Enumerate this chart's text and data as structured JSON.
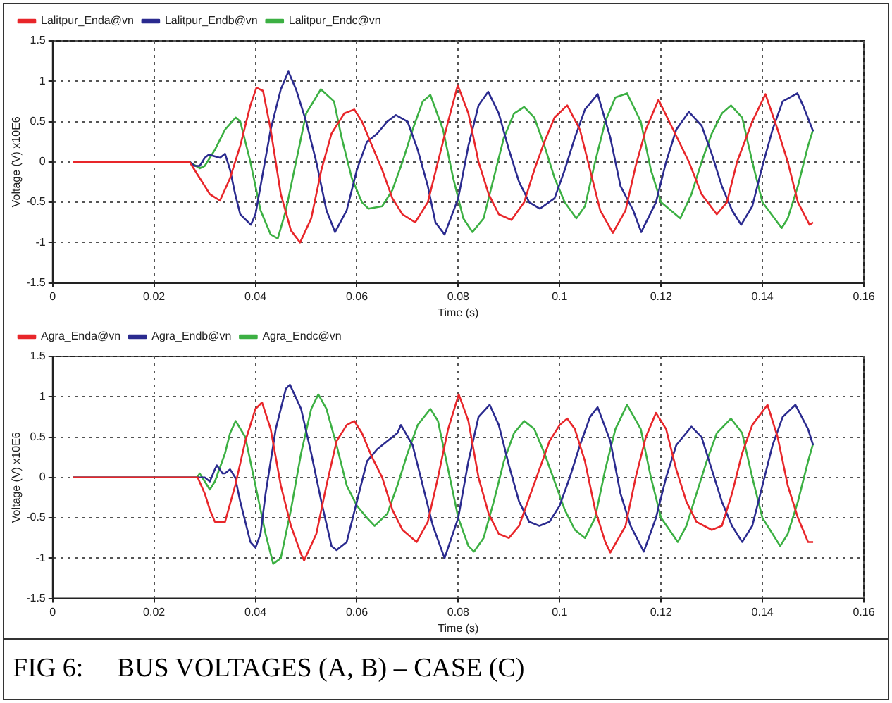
{
  "chart_data": [
    {
      "type": "line",
      "xlabel": "Time (s)",
      "ylabel": "Voltage (V) x10E6",
      "xlim": [
        0,
        0.16
      ],
      "xticks": [
        0,
        0.02,
        0.04,
        0.06,
        0.08,
        0.1,
        0.12,
        0.14,
        0.16
      ],
      "ylim": [
        -1.5,
        1.5
      ],
      "yticks": [
        -1.5,
        -1,
        -0.5,
        0,
        0.5,
        1,
        1.5
      ],
      "grid": true,
      "legend": "top left",
      "marker": "none",
      "line_style": "solid",
      "series": [
        {
          "name": "Lalitpur_Enda@vn",
          "color": "#e8262a",
          "x": [
            0.004,
            0.027,
            0.029,
            0.031,
            0.033,
            0.035,
            0.037,
            0.039,
            0.0402,
            0.0415,
            0.043,
            0.045,
            0.047,
            0.0488,
            0.051,
            0.053,
            0.055,
            0.0575,
            0.0595,
            0.061,
            0.063,
            0.065,
            0.067,
            0.069,
            0.0715,
            0.074,
            0.076,
            0.078,
            0.0799,
            0.082,
            0.084,
            0.086,
            0.088,
            0.0905,
            0.093,
            0.095,
            0.097,
            0.099,
            0.1015,
            0.104,
            0.106,
            0.108,
            0.1105,
            0.113,
            0.115,
            0.117,
            0.1195,
            0.122,
            0.1255,
            0.128,
            0.131,
            0.133,
            0.135,
            0.138,
            0.1406,
            0.143,
            0.145,
            0.147,
            0.1493,
            0.15
          ],
          "values": [
            0,
            0,
            -0.2,
            -0.4,
            -0.48,
            -0.2,
            0.2,
            0.7,
            0.92,
            0.88,
            0.4,
            -0.4,
            -0.85,
            -1.0,
            -0.7,
            -0.1,
            0.35,
            0.6,
            0.65,
            0.5,
            0.2,
            -0.1,
            -0.45,
            -0.65,
            -0.75,
            -0.5,
            0,
            0.5,
            0.95,
            0.6,
            0,
            -0.4,
            -0.65,
            -0.72,
            -0.5,
            -0.1,
            0.25,
            0.55,
            0.7,
            0.4,
            -0.1,
            -0.6,
            -0.88,
            -0.6,
            -0.05,
            0.4,
            0.77,
            0.45,
            0,
            -0.4,
            -0.65,
            -0.5,
            0,
            0.5,
            0.84,
            0.4,
            0,
            -0.5,
            -0.78,
            -0.75
          ]
        },
        {
          "name": "Lalitpur_Endb@vn",
          "color": "#2b2b8f",
          "x": [
            0.004,
            0.027,
            0.028,
            0.029,
            0.03,
            0.0308,
            0.033,
            0.034,
            0.035,
            0.036,
            0.037,
            0.0391,
            0.04,
            0.041,
            0.043,
            0.045,
            0.0465,
            0.048,
            0.05,
            0.052,
            0.054,
            0.0557,
            0.058,
            0.06,
            0.062,
            0.064,
            0.066,
            0.0677,
            0.07,
            0.072,
            0.074,
            0.0755,
            0.0773,
            0.08,
            0.082,
            0.084,
            0.0859,
            0.088,
            0.09,
            0.092,
            0.094,
            0.0961,
            0.099,
            0.101,
            0.103,
            0.105,
            0.1075,
            0.11,
            0.112,
            0.1145,
            0.1161,
            0.119,
            0.121,
            0.123,
            0.1255,
            0.128,
            0.13,
            0.132,
            0.134,
            0.1358,
            0.138,
            0.14,
            0.142,
            0.144,
            0.1469,
            0.148,
            0.15
          ],
          "values": [
            0,
            0,
            -0.05,
            -0.05,
            0.05,
            0.09,
            0.05,
            0.1,
            -0.1,
            -0.4,
            -0.65,
            -0.78,
            -0.65,
            -0.3,
            0.4,
            0.9,
            1.12,
            0.9,
            0.5,
            0,
            -0.6,
            -0.87,
            -0.6,
            -0.1,
            0.25,
            0.35,
            0.5,
            0.58,
            0.5,
            0.15,
            -0.3,
            -0.75,
            -0.9,
            -0.45,
            0.2,
            0.7,
            0.87,
            0.6,
            0.15,
            -0.25,
            -0.5,
            -0.58,
            -0.45,
            -0.1,
            0.3,
            0.65,
            0.84,
            0.3,
            -0.3,
            -0.6,
            -0.87,
            -0.5,
            0,
            0.4,
            0.62,
            0.45,
            0.1,
            -0.3,
            -0.6,
            -0.78,
            -0.55,
            -0.05,
            0.4,
            0.75,
            0.85,
            0.7,
            0.38
          ]
        },
        {
          "name": "Lalitpur_Endc@vn",
          "color": "#3cb043",
          "x": [
            0.004,
            0.027,
            0.029,
            0.03,
            0.032,
            0.034,
            0.0361,
            0.037,
            0.039,
            0.041,
            0.043,
            0.0444,
            0.046,
            0.048,
            0.05,
            0.0529,
            0.0555,
            0.057,
            0.059,
            0.061,
            0.0623,
            0.065,
            0.067,
            0.069,
            0.071,
            0.073,
            0.0745,
            0.077,
            0.079,
            0.081,
            0.0828,
            0.085,
            0.087,
            0.089,
            0.091,
            0.093,
            0.095,
            0.097,
            0.099,
            0.101,
            0.1033,
            0.105,
            0.107,
            0.109,
            0.111,
            0.1133,
            0.116,
            0.118,
            0.12,
            0.1238,
            0.126,
            0.128,
            0.13,
            0.132,
            0.1338,
            0.136,
            0.138,
            0.14,
            0.1438,
            0.145,
            0.147,
            0.149,
            0.15
          ],
          "values": [
            0,
            0,
            -0.08,
            -0.05,
            0.15,
            0.4,
            0.55,
            0.5,
            0,
            -0.6,
            -0.9,
            -0.95,
            -0.6,
            0,
            0.6,
            0.9,
            0.75,
            0.3,
            -0.2,
            -0.5,
            -0.58,
            -0.55,
            -0.35,
            0,
            0.4,
            0.75,
            0.83,
            0.4,
            -0.2,
            -0.7,
            -0.87,
            -0.7,
            -0.2,
            0.3,
            0.6,
            0.68,
            0.55,
            0.2,
            -0.2,
            -0.5,
            -0.7,
            -0.55,
            0,
            0.5,
            0.8,
            0.85,
            0.5,
            -0.1,
            -0.5,
            -0.7,
            -0.4,
            0,
            0.35,
            0.6,
            0.7,
            0.55,
            0,
            -0.5,
            -0.82,
            -0.7,
            -0.3,
            0.2,
            0.4
          ]
        }
      ]
    },
    {
      "type": "line",
      "xlabel": "Time (s)",
      "ylabel": "Voltage (V) x10E6",
      "xlim": [
        0,
        0.16
      ],
      "xticks": [
        0,
        0.02,
        0.04,
        0.06,
        0.08,
        0.1,
        0.12,
        0.14,
        0.16
      ],
      "ylim": [
        -1.5,
        1.5
      ],
      "yticks": [
        -1.5,
        -1,
        -0.5,
        0,
        0.5,
        1,
        1.5
      ],
      "grid": true,
      "legend": "top left",
      "marker": "none",
      "line_style": "solid",
      "annotations": [
        "FIG 6:     BUS VOLTAGES (A, B) – CASE (C)"
      ],
      "series": [
        {
          "name": "Agra_Enda@vn",
          "color": "#e8262a",
          "x": [
            0.004,
            0.0286,
            0.03,
            0.031,
            0.032,
            0.034,
            0.036,
            0.038,
            0.04,
            0.0413,
            0.043,
            0.045,
            0.047,
            0.049,
            0.0496,
            0.052,
            0.054,
            0.056,
            0.058,
            0.0595,
            0.061,
            0.063,
            0.065,
            0.067,
            0.069,
            0.0718,
            0.074,
            0.076,
            0.078,
            0.0801,
            0.082,
            0.084,
            0.086,
            0.088,
            0.09,
            0.092,
            0.094,
            0.096,
            0.098,
            0.1,
            0.1015,
            0.103,
            0.105,
            0.107,
            0.109,
            0.11,
            0.113,
            0.115,
            0.117,
            0.119,
            0.121,
            0.123,
            0.125,
            0.127,
            0.13,
            0.132,
            0.134,
            0.136,
            0.138,
            0.141,
            0.143,
            0.145,
            0.147,
            0.149,
            0.15
          ],
          "values": [
            0,
            0,
            -0.2,
            -0.4,
            -0.55,
            -0.55,
            -0.1,
            0.45,
            0.85,
            0.93,
            0.6,
            -0.1,
            -0.6,
            -0.95,
            -1.03,
            -0.7,
            -0.1,
            0.45,
            0.65,
            0.7,
            0.55,
            0.25,
            0,
            -0.4,
            -0.65,
            -0.8,
            -0.55,
            0,
            0.6,
            1.03,
            0.7,
            0,
            -0.45,
            -0.7,
            -0.75,
            -0.6,
            -0.25,
            0.1,
            0.45,
            0.65,
            0.73,
            0.6,
            0.2,
            -0.4,
            -0.8,
            -0.93,
            -0.6,
            0,
            0.5,
            0.8,
            0.6,
            0.1,
            -0.3,
            -0.55,
            -0.65,
            -0.6,
            -0.2,
            0.3,
            0.65,
            0.9,
            0.5,
            -0.1,
            -0.5,
            -0.8,
            -0.8
          ]
        },
        {
          "name": "Agra_Endb@vn",
          "color": "#2b2b8f",
          "x": [
            0.004,
            0.03,
            0.031,
            0.032,
            0.0324,
            0.0335,
            0.034,
            0.035,
            0.036,
            0.037,
            0.038,
            0.039,
            0.04,
            0.041,
            0.042,
            0.044,
            0.046,
            0.0468,
            0.049,
            0.051,
            0.053,
            0.055,
            0.056,
            0.058,
            0.06,
            0.062,
            0.064,
            0.066,
            0.068,
            0.0687,
            0.071,
            0.073,
            0.075,
            0.0773,
            0.08,
            0.082,
            0.084,
            0.0862,
            0.088,
            0.09,
            0.092,
            0.094,
            0.096,
            0.098,
            0.1,
            0.102,
            0.104,
            0.106,
            0.1075,
            0.11,
            0.112,
            0.114,
            0.1166,
            0.119,
            0.121,
            0.123,
            0.126,
            0.128,
            0.13,
            0.132,
            0.134,
            0.136,
            0.138,
            0.14,
            0.142,
            0.144,
            0.1465,
            0.149,
            0.15
          ],
          "values": [
            0,
            0,
            -0.05,
            0.1,
            0.15,
            0.05,
            0.05,
            0.1,
            0,
            -0.3,
            -0.55,
            -0.8,
            -0.87,
            -0.7,
            -0.2,
            0.6,
            1.1,
            1.15,
            0.85,
            0.3,
            -0.3,
            -0.85,
            -0.9,
            -0.8,
            -0.3,
            0.2,
            0.35,
            0.45,
            0.55,
            0.65,
            0.4,
            -0.1,
            -0.6,
            -1.0,
            -0.5,
            0.2,
            0.75,
            0.9,
            0.65,
            0.15,
            -0.3,
            -0.55,
            -0.6,
            -0.55,
            -0.35,
            0,
            0.4,
            0.75,
            0.87,
            0.45,
            -0.2,
            -0.6,
            -0.92,
            -0.5,
            0,
            0.4,
            0.63,
            0.5,
            0.1,
            -0.3,
            -0.6,
            -0.8,
            -0.6,
            -0.1,
            0.4,
            0.75,
            0.9,
            0.6,
            0.4
          ]
        },
        {
          "name": "Agra_Endc@vn",
          "color": "#3cb043",
          "x": [
            0.004,
            0.0285,
            0.029,
            0.03,
            0.031,
            0.032,
            0.034,
            0.035,
            0.0361,
            0.038,
            0.04,
            0.042,
            0.0435,
            0.045,
            0.047,
            0.049,
            0.051,
            0.0524,
            0.054,
            0.056,
            0.058,
            0.06,
            0.062,
            0.0635,
            0.066,
            0.068,
            0.07,
            0.072,
            0.0745,
            0.076,
            0.078,
            0.08,
            0.082,
            0.0831,
            0.085,
            0.087,
            0.089,
            0.091,
            0.093,
            0.095,
            0.097,
            0.099,
            0.101,
            0.103,
            0.105,
            0.107,
            0.109,
            0.111,
            0.1133,
            0.116,
            0.118,
            0.12,
            0.1233,
            0.125,
            0.127,
            0.129,
            0.131,
            0.1338,
            0.136,
            0.138,
            0.14,
            0.1435,
            0.145,
            0.147,
            0.149,
            0.15
          ],
          "values": [
            0,
            0,
            0.05,
            -0.05,
            -0.15,
            -0.05,
            0.3,
            0.55,
            0.7,
            0.5,
            -0.1,
            -0.7,
            -1.07,
            -1.0,
            -0.4,
            0.3,
            0.85,
            1.03,
            0.85,
            0.4,
            -0.1,
            -0.35,
            -0.5,
            -0.6,
            -0.45,
            -0.1,
            0.3,
            0.65,
            0.85,
            0.7,
            0.1,
            -0.5,
            -0.85,
            -0.92,
            -0.75,
            -0.3,
            0.2,
            0.55,
            0.7,
            0.6,
            0.3,
            -0.05,
            -0.4,
            -0.65,
            -0.75,
            -0.5,
            0.1,
            0.6,
            0.9,
            0.6,
            0,
            -0.5,
            -0.8,
            -0.6,
            -0.2,
            0.2,
            0.55,
            0.73,
            0.55,
            0,
            -0.5,
            -0.85,
            -0.7,
            -0.3,
            0.2,
            0.42
          ]
        }
      ]
    }
  ]
}
